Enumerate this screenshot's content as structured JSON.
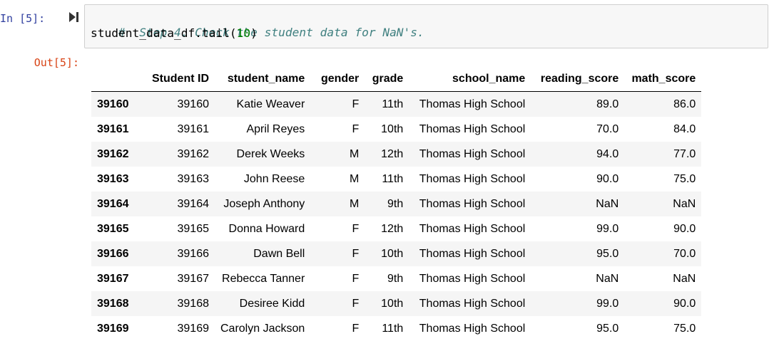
{
  "input_cell": {
    "prompt": "In [5]:",
    "code_comment": "#  Step 4. Check the student data for NaN's.",
    "code_prefix": "student_data_df.tail(",
    "code_number": "10",
    "code_suffix": ")"
  },
  "output_cell": {
    "prompt": "Out[5]:"
  },
  "dataframe": {
    "columns": [
      "",
      "Student ID",
      "student_name",
      "gender",
      "grade",
      "school_name",
      "reading_score",
      "math_score"
    ],
    "rows": [
      [
        "39160",
        "39160",
        "Katie Weaver",
        "F",
        "11th",
        "Thomas High School",
        "89.0",
        "86.0"
      ],
      [
        "39161",
        "39161",
        "April Reyes",
        "F",
        "10th",
        "Thomas High School",
        "70.0",
        "84.0"
      ],
      [
        "39162",
        "39162",
        "Derek Weeks",
        "M",
        "12th",
        "Thomas High School",
        "94.0",
        "77.0"
      ],
      [
        "39163",
        "39163",
        "John Reese",
        "M",
        "11th",
        "Thomas High School",
        "90.0",
        "75.0"
      ],
      [
        "39164",
        "39164",
        "Joseph Anthony",
        "M",
        "9th",
        "Thomas High School",
        "NaN",
        "NaN"
      ],
      [
        "39165",
        "39165",
        "Donna Howard",
        "F",
        "12th",
        "Thomas High School",
        "99.0",
        "90.0"
      ],
      [
        "39166",
        "39166",
        "Dawn Bell",
        "F",
        "10th",
        "Thomas High School",
        "95.0",
        "70.0"
      ],
      [
        "39167",
        "39167",
        "Rebecca Tanner",
        "F",
        "9th",
        "Thomas High School",
        "NaN",
        "NaN"
      ],
      [
        "39168",
        "39168",
        "Desiree Kidd",
        "F",
        "10th",
        "Thomas High School",
        "99.0",
        "90.0"
      ],
      [
        "39169",
        "39169",
        "Carolyn Jackson",
        "F",
        "11th",
        "Thomas High School",
        "95.0",
        "75.0"
      ]
    ]
  },
  "colors": {
    "in_prompt": "#303f9f",
    "out_prompt": "#d84315",
    "comment": "#408080",
    "number": "#008000",
    "cell_bg": "#f7f7f7",
    "row_stripe": "#f5f5f5"
  }
}
